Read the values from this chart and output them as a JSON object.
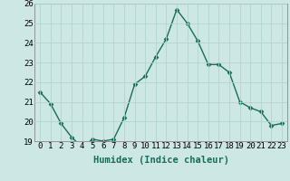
{
  "x": [
    0,
    1,
    2,
    3,
    4,
    5,
    6,
    7,
    8,
    9,
    10,
    11,
    12,
    13,
    14,
    15,
    16,
    17,
    18,
    19,
    20,
    21,
    22,
    23
  ],
  "y": [
    21.5,
    20.9,
    19.9,
    19.2,
    18.7,
    19.1,
    19.0,
    19.1,
    20.2,
    21.9,
    22.3,
    23.3,
    24.2,
    25.7,
    25.0,
    24.1,
    22.9,
    22.9,
    22.5,
    21.0,
    20.7,
    20.5,
    19.8,
    19.9
  ],
  "ylim": [
    19,
    26
  ],
  "yticks": [
    19,
    20,
    21,
    22,
    23,
    24,
    25,
    26
  ],
  "xticks": [
    0,
    1,
    2,
    3,
    4,
    5,
    6,
    7,
    8,
    9,
    10,
    11,
    12,
    13,
    14,
    15,
    16,
    17,
    18,
    19,
    20,
    21,
    22,
    23
  ],
  "xlabel": "Humidex (Indice chaleur)",
  "line_color": "#1a6b5a",
  "marker": "D",
  "marker_size": 2.5,
  "bg_color": "#cde8e4",
  "grid_color": "#b0d4ce",
  "tick_label_fontsize": 6.5,
  "xlabel_fontsize": 7.5
}
